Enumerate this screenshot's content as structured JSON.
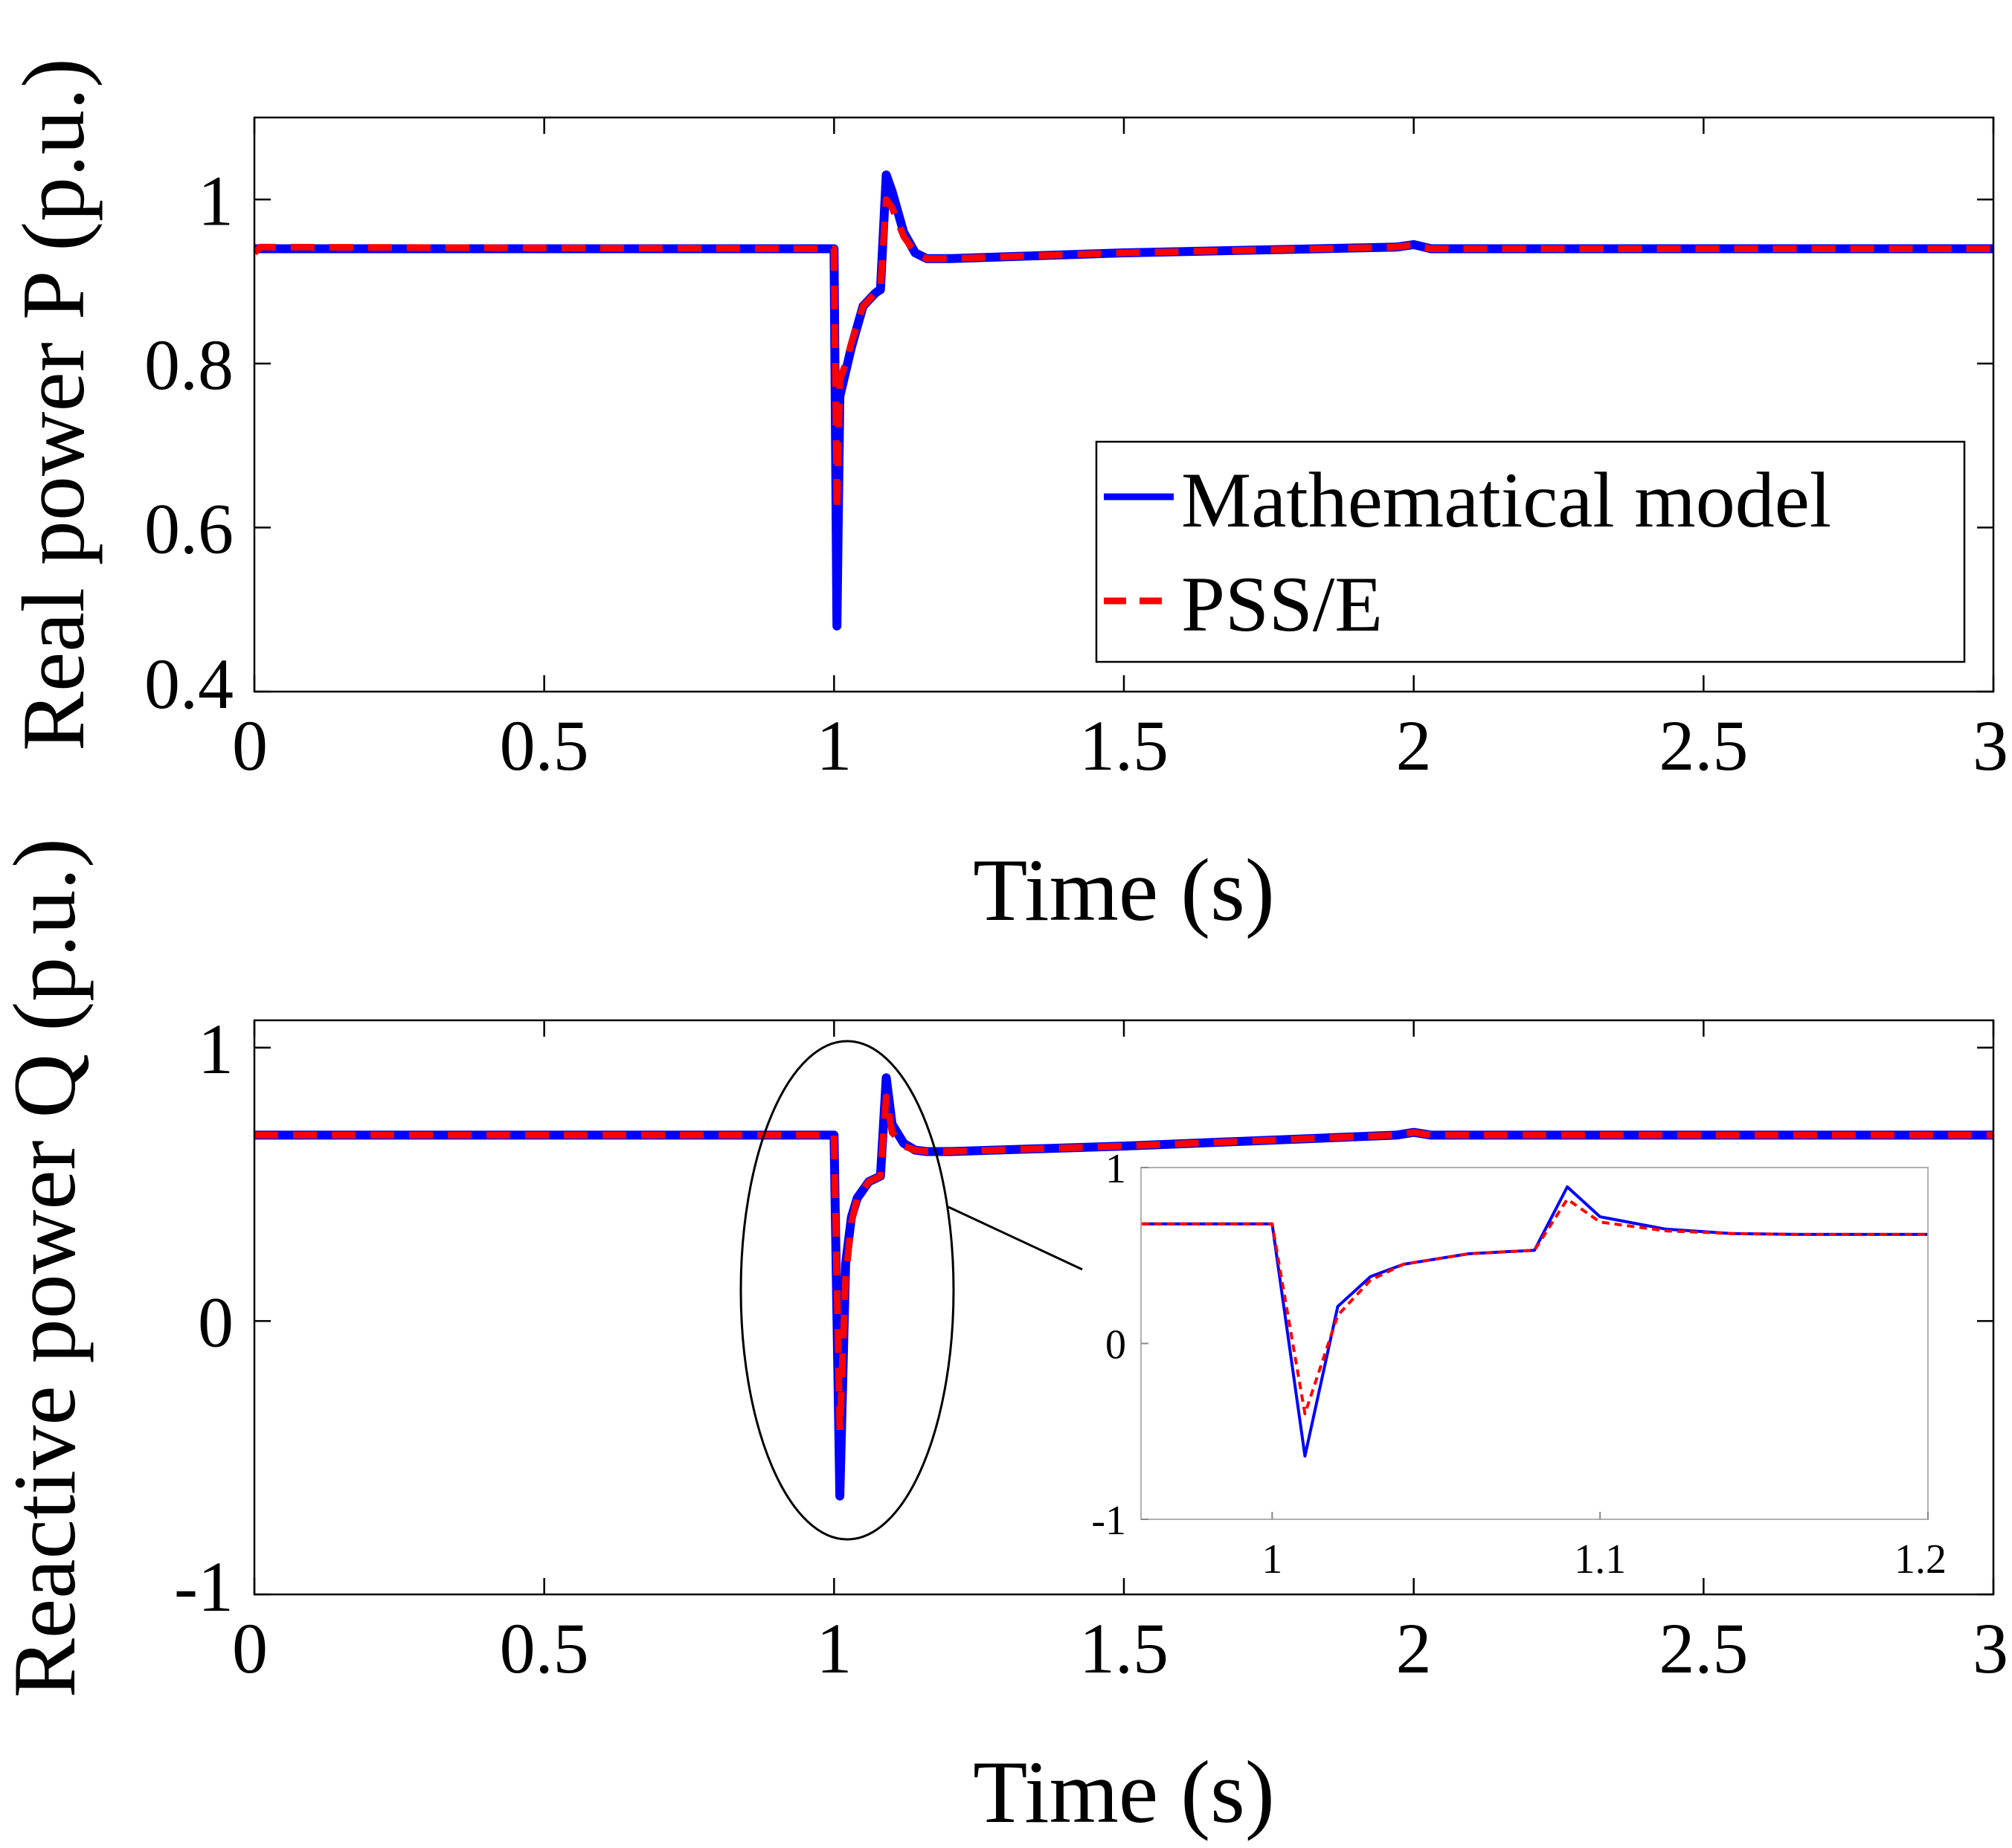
{
  "colors": {
    "model": "#0000ff",
    "psse": "#ff0000",
    "axes": "#000000",
    "background": "#ffffff"
  },
  "chart_data": [
    {
      "type": "line",
      "xlabel": "Time (s)",
      "ylabel": "Real power P (p.u.)",
      "xlim": [
        0,
        3
      ],
      "ylim": [
        0.4,
        1.1
      ],
      "xticks": [
        "0",
        "0.5",
        "1",
        "1.5",
        "2",
        "2.5",
        "3"
      ],
      "yticks": [
        "0.4",
        "0.6",
        "0.8",
        "1"
      ],
      "legend_position": "bottom-right",
      "grid": false,
      "series": [
        {
          "name": "Mathematical model",
          "style": "solid",
          "x": [
            0,
            0.999,
            1.0,
            1.005,
            1.01,
            1.02,
            1.03,
            1.05,
            1.07,
            1.075,
            1.08,
            1.09,
            1.1,
            1.12,
            1.14,
            1.16,
            1.2,
            1.5,
            1.97,
            2.0,
            2.03,
            2.5,
            3.0
          ],
          "y": [
            0.94,
            0.94,
            0.94,
            0.48,
            0.76,
            0.79,
            0.82,
            0.87,
            0.885,
            0.888,
            0.89,
            1.03,
            1.01,
            0.96,
            0.935,
            0.928,
            0.928,
            0.935,
            0.942,
            0.945,
            0.94,
            0.94,
            0.94
          ]
        },
        {
          "name": "PSS/E",
          "style": "dashed",
          "x": [
            0,
            0.01,
            0.999,
            1.0,
            1.005,
            1.01,
            1.02,
            1.03,
            1.05,
            1.07,
            1.075,
            1.08,
            1.09,
            1.1,
            1.12,
            1.14,
            1.16,
            1.2,
            1.5,
            1.97,
            2.0,
            2.03,
            2.5,
            3.0
          ],
          "y": [
            0.935,
            0.942,
            0.94,
            0.94,
            0.62,
            0.78,
            0.8,
            0.825,
            0.87,
            0.885,
            0.888,
            0.89,
            1.0,
            0.99,
            0.955,
            0.935,
            0.928,
            0.928,
            0.935,
            0.942,
            0.945,
            0.94,
            0.94,
            0.94
          ]
        }
      ]
    },
    {
      "type": "line",
      "xlabel": "Time (s)",
      "ylabel": "Reactive power Q (p.u.)",
      "xlim": [
        0,
        3
      ],
      "ylim": [
        -1,
        1.1
      ],
      "xticks": [
        "0",
        "0.5",
        "1",
        "1.5",
        "2",
        "2.5",
        "3"
      ],
      "yticks": [
        "-1",
        "0",
        "1"
      ],
      "grid": false,
      "annotation": "ellipse highlighting 0.9–1.1 s with zoom inset",
      "series": [
        {
          "name": "Mathematical model",
          "style": "solid",
          "x": [
            0,
            0.99,
            1.0,
            1.01,
            1.02,
            1.03,
            1.04,
            1.06,
            1.08,
            1.09,
            1.1,
            1.12,
            1.14,
            1.16,
            1.2,
            1.5,
            1.97,
            2.0,
            2.03,
            2.5,
            3.0
          ],
          "y": [
            0.68,
            0.68,
            0.68,
            -0.64,
            0.21,
            0.38,
            0.45,
            0.51,
            0.53,
            0.89,
            0.72,
            0.65,
            0.625,
            0.62,
            0.62,
            0.64,
            0.68,
            0.69,
            0.68,
            0.68,
            0.68
          ]
        },
        {
          "name": "PSS/E",
          "style": "dashed",
          "x": [
            0,
            0.99,
            1.0,
            1.01,
            1.02,
            1.03,
            1.04,
            1.06,
            1.08,
            1.09,
            1.1,
            1.12,
            1.14,
            1.16,
            1.2,
            1.5,
            1.97,
            2.0,
            2.03,
            2.5,
            3.0
          ],
          "y": [
            0.68,
            0.68,
            0.68,
            -0.4,
            0.16,
            0.36,
            0.45,
            0.51,
            0.53,
            0.82,
            0.69,
            0.64,
            0.625,
            0.62,
            0.62,
            0.64,
            0.68,
            0.69,
            0.68,
            0.68,
            0.68
          ]
        }
      ],
      "inset": {
        "xlim": [
          0.96,
          1.2
        ],
        "ylim": [
          -1,
          1
        ],
        "xticks": [
          "1",
          "1.1",
          "1.2"
        ],
        "yticks": [
          "-1",
          "0",
          "1"
        ]
      }
    }
  ]
}
